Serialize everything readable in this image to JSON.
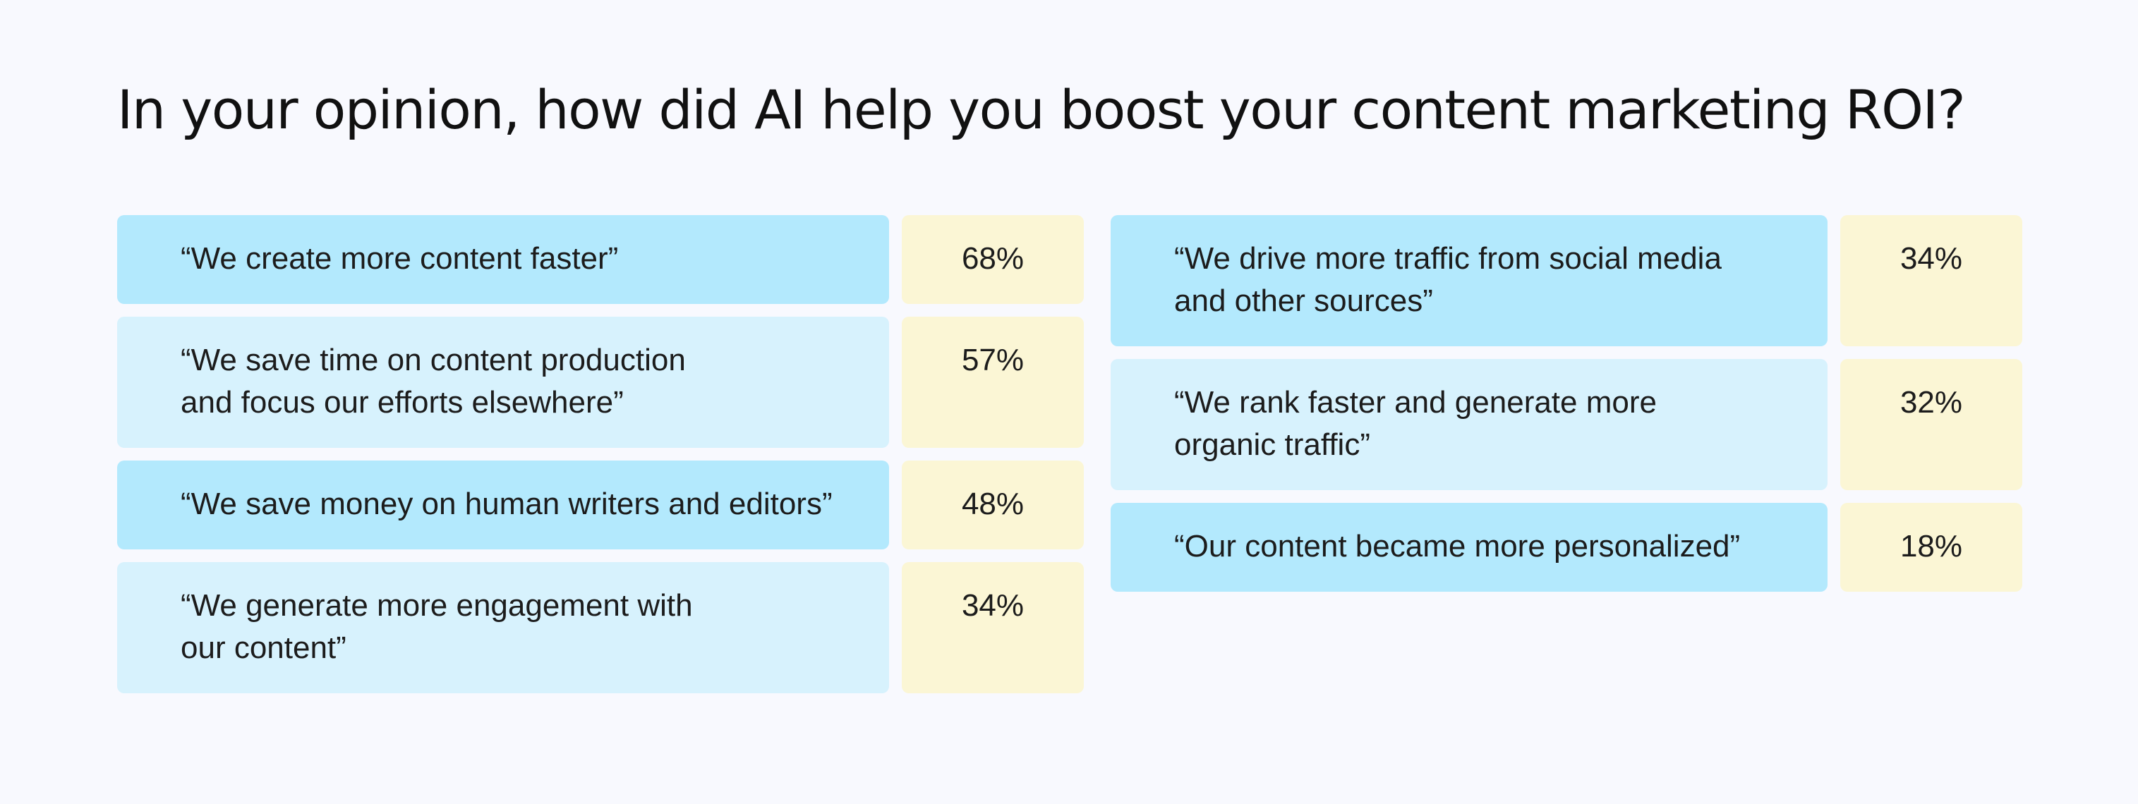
{
  "title": "In your opinion, how did AI help you boost your content marketing ROI?",
  "left_items": [
    {
      "line1": "“We create more content faster”",
      "line2": "",
      "value": "68%"
    },
    {
      "line1": "“We save time on content production",
      "line2": "and focus our efforts elsewhere”",
      "value": "57%"
    },
    {
      "line1": "“We save money on human writers and editors”",
      "line2": "",
      "value": "48%"
    },
    {
      "line1": "“We generate more engagement with",
      "line2": "our content”",
      "value": "34%"
    }
  ],
  "right_items": [
    {
      "line1": "“We drive more traffic from social media",
      "line2": "and other sources”",
      "value": "34%"
    },
    {
      "line1": "“We rank faster and generate more",
      "line2": "organic traffic”",
      "value": "32%"
    },
    {
      "line1": "“Our content became more personalized”",
      "line2": "",
      "value": "18%"
    }
  ],
  "colors": {
    "background": "#f8f9fe",
    "answer_dark": "#b3e9fd",
    "answer_light": "#d7f2fd",
    "percent_box": "#fbf6d5"
  }
}
